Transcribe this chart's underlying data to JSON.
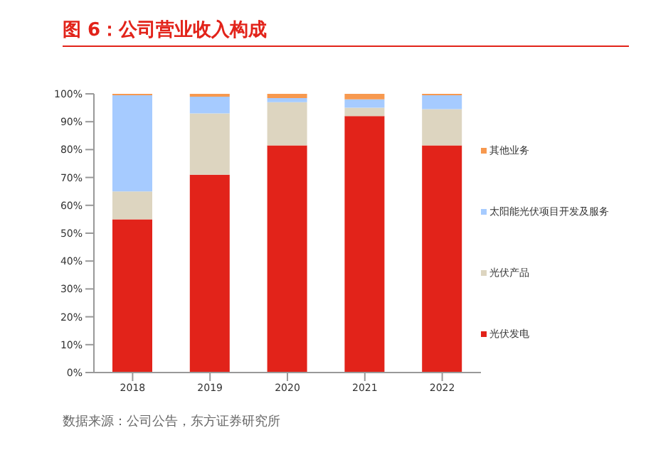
{
  "chart_data": {
    "type": "bar",
    "title": "图 6：公司营业收入构成",
    "categories": [
      "2018",
      "2019",
      "2020",
      "2021",
      "2022"
    ],
    "stacked": true,
    "series": [
      {
        "name": "光伏发电",
        "color": "#e2231a",
        "values": [
          55,
          71,
          81.5,
          92,
          81.5
        ]
      },
      {
        "name": "光伏产品",
        "color": "#ddd5c0",
        "values": [
          10,
          22,
          15.5,
          3,
          13
        ]
      },
      {
        "name": "太阳能光伏项目开发及服务",
        "color": "#a6cbff",
        "values": [
          34.5,
          6,
          1.5,
          3,
          5
        ]
      },
      {
        "name": "其他业务",
        "color": "#f7994f",
        "values": [
          0.5,
          1,
          1.5,
          2,
          0.5
        ]
      }
    ],
    "ylim": [
      0,
      100
    ],
    "yticks": [
      {
        "value": 0,
        "label": "0%"
      },
      {
        "value": 10,
        "label": "10%"
      },
      {
        "value": 20,
        "label": "20%"
      },
      {
        "value": 30,
        "label": "30%"
      },
      {
        "value": 40,
        "label": "40%"
      },
      {
        "value": 50,
        "label": "50%"
      },
      {
        "value": 60,
        "label": "60%"
      },
      {
        "value": 70,
        "label": "70%"
      },
      {
        "value": 80,
        "label": "80%"
      },
      {
        "value": 90,
        "label": "90%"
      },
      {
        "value": 100,
        "label": "100%"
      }
    ],
    "legend": "right",
    "grid": false,
    "annotations": [
      "数据来源：公司公告，东方证券研究所"
    ]
  }
}
